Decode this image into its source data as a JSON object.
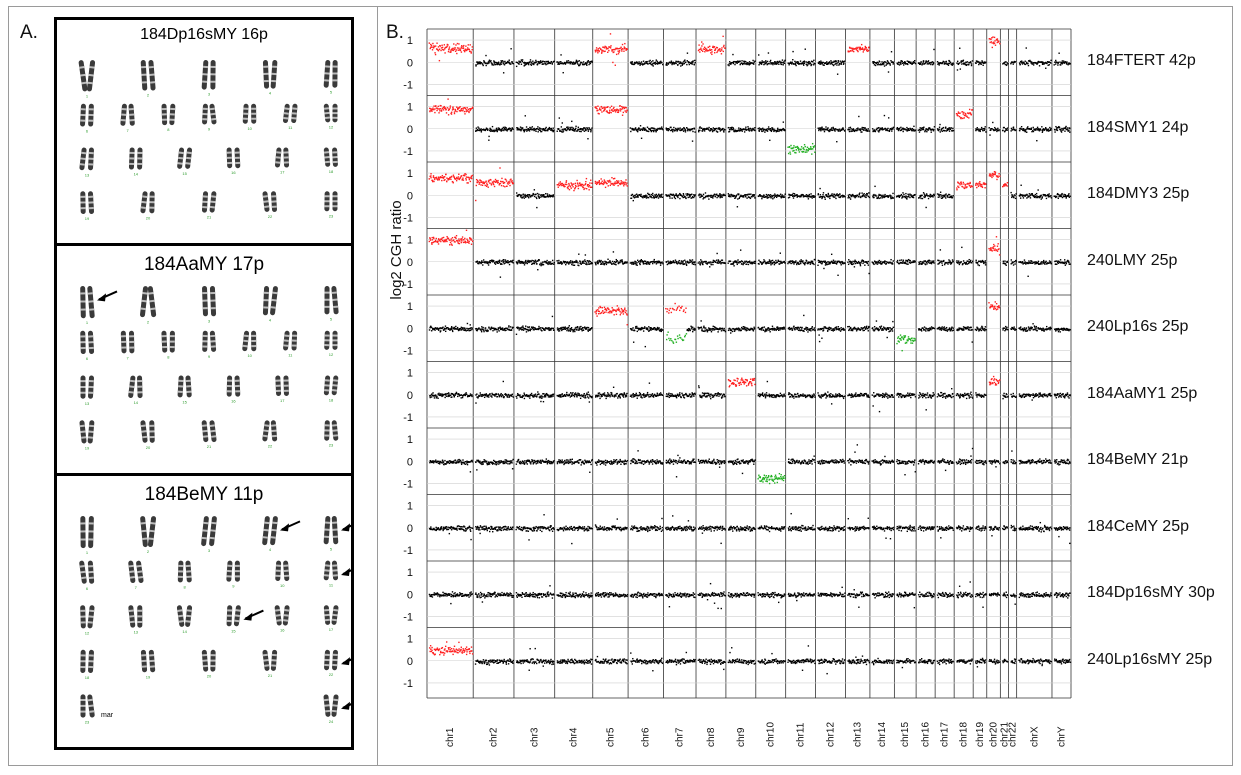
{
  "panel_a": {
    "label": "A.",
    "karyotypes": [
      {
        "title": "184Dp16sMY 16p",
        "rows": [
          5,
          7,
          6,
          5
        ],
        "arrows": [],
        "extra_labels": []
      },
      {
        "title": "184AaMY 17p",
        "rows": [
          5,
          7,
          6,
          5
        ],
        "arrows": [
          [
            0,
            0
          ]
        ],
        "extra_labels": []
      },
      {
        "title": "184BeMY 11p",
        "rows": [
          5,
          6,
          6,
          5,
          2
        ],
        "arrows": [
          [
            0,
            3
          ],
          [
            0,
            4
          ],
          [
            1,
            5
          ],
          [
            2,
            3
          ],
          [
            3,
            4
          ],
          [
            4,
            1
          ]
        ],
        "extra_labels": [
          "mar"
        ]
      }
    ]
  },
  "panel_b": {
    "label": "B.",
    "y_axis_label": "log2 CGH ratio"
  },
  "chart_data": {
    "type": "scatter",
    "title": "",
    "ylabel": "log2 CGH ratio",
    "ylim": [
      -1.5,
      1.5
    ],
    "y_ticks": [
      "1",
      "0",
      "-1"
    ],
    "categories": [
      "chr1",
      "chr2",
      "chr3",
      "chr4",
      "chr5",
      "chr6",
      "chr7",
      "chr8",
      "chr9",
      "chr10",
      "chr11",
      "chr12",
      "chr13",
      "chr14",
      "chr15",
      "chr16",
      "chr17",
      "chr18",
      "chr19",
      "chr20",
      "chr21",
      "chr22",
      "chrX",
      "chrY"
    ],
    "colors": {
      "gain": "#ff2020",
      "loss": "#22b022",
      "neutral": "#000000"
    },
    "series": [
      {
        "name": "184FTERT 42p",
        "segments": [
          {
            "chr": "chr1",
            "value": 0.65,
            "status": "gain"
          },
          {
            "chr": "chr5",
            "value": 0.6,
            "status": "gain"
          },
          {
            "chr": "chr8",
            "value": 0.6,
            "status": "gain"
          },
          {
            "chr": "chr13",
            "value": 0.6,
            "status": "gain"
          },
          {
            "chr": "chr20",
            "value": 1.0,
            "status": "gain"
          }
        ]
      },
      {
        "name": "184SMY1 24p",
        "segments": [
          {
            "chr": "chr1",
            "value": 0.9,
            "status": "gain"
          },
          {
            "chr": "chr5",
            "value": 0.9,
            "status": "gain"
          },
          {
            "chr": "chr11",
            "value": -0.9,
            "status": "loss"
          },
          {
            "chr": "chr18",
            "value": 0.7,
            "status": "gain"
          }
        ]
      },
      {
        "name": "184DMY3 25p",
        "segments": [
          {
            "chr": "chr1",
            "value": 0.8,
            "status": "gain"
          },
          {
            "chr": "chr2",
            "value": 0.6,
            "status": "gain"
          },
          {
            "chr": "chr4",
            "value": 0.5,
            "status": "gain"
          },
          {
            "chr": "chr5",
            "value": 0.6,
            "status": "gain"
          },
          {
            "chr": "chr18",
            "value": 0.5,
            "status": "gain"
          },
          {
            "chr": "chr19",
            "value": 0.5,
            "status": "gain"
          },
          {
            "chr": "chr20",
            "value": 0.9,
            "status": "gain"
          },
          {
            "chr": "chr21",
            "value": 0.5,
            "status": "gain"
          }
        ]
      },
      {
        "name": "240LMY 25p",
        "segments": [
          {
            "chr": "chr1",
            "value": 1.0,
            "status": "gain"
          },
          {
            "chr": "chr20",
            "value": 0.6,
            "status": "gain"
          }
        ]
      },
      {
        "name": "240Lp16s 25p",
        "segments": [
          {
            "chr": "chr5",
            "value": 0.8,
            "status": "gain"
          },
          {
            "chr": "chr7",
            "value": 0.9,
            "status": "gain"
          },
          {
            "chr": "chr7",
            "value": -0.4,
            "status": "loss"
          },
          {
            "chr": "chr15",
            "value": -0.5,
            "status": "loss"
          },
          {
            "chr": "chr20",
            "value": 1.0,
            "status": "gain"
          }
        ]
      },
      {
        "name": "184AaMY1 25p",
        "segments": [
          {
            "chr": "chr9",
            "value": 0.6,
            "status": "gain"
          },
          {
            "chr": "chr20",
            "value": 0.6,
            "status": "gain"
          }
        ]
      },
      {
        "name": "184BeMY 21p",
        "segments": [
          {
            "chr": "chr10",
            "value": -0.7,
            "status": "loss"
          }
        ]
      },
      {
        "name": "184CeMY 25p",
        "segments": []
      },
      {
        "name": "184Dp16sMY 30p",
        "segments": []
      },
      {
        "name": "240Lp16sMY 25p",
        "segments": [
          {
            "chr": "chr1",
            "value": 0.5,
            "status": "gain"
          }
        ]
      }
    ]
  }
}
